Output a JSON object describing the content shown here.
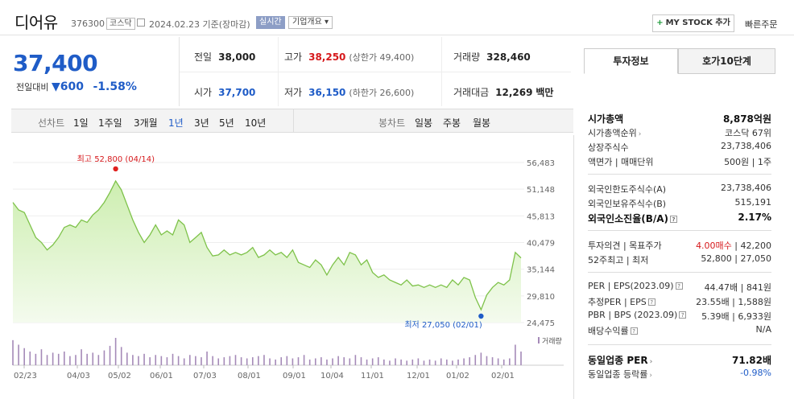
{
  "header": {
    "name": "디어유",
    "code": "376300",
    "market": "코스닥",
    "date": "2024.02.23",
    "basis": "기준(장마감)",
    "live": "실시간",
    "corp_info": "기업개요 ▾",
    "mystock": "MY STOCK 추가",
    "quick_order": "빠른주문"
  },
  "quote": {
    "price": "37,400",
    "change_label": "전일대비",
    "change_arrow": "▼",
    "change_amount": "600",
    "change_pct": "-1.58%"
  },
  "stats": {
    "prev_label": "전일",
    "prev": "38,000",
    "high_label": "고가",
    "high": "38,250",
    "high_limit": "(상한가 49,400)",
    "vol_label": "거래량",
    "vol": "328,460",
    "open_label": "시가",
    "open": "37,700",
    "low_label": "저가",
    "low": "36,150",
    "low_limit": "(하한가 26,600)",
    "amt_label": "거래대금",
    "amt": "12,269",
    "amt_unit": "백만"
  },
  "periods": {
    "line_label": "선차트",
    "items": [
      "1일",
      "1주일",
      "3개월",
      "1년",
      "3년",
      "5년",
      "10년"
    ],
    "active": "1년",
    "candle_label": "봉차트",
    "candles": [
      "일봉",
      "주봉",
      "월봉"
    ]
  },
  "chart_data": {
    "type": "area",
    "y_ticks": [
      "56,483",
      "51,148",
      "45,813",
      "40,479",
      "35,144",
      "29,810",
      "24,475"
    ],
    "ylim": [
      24475,
      56483
    ],
    "x_ticks": [
      "02/23",
      "04/03",
      "05/02",
      "06/01",
      "07/03",
      "08/01",
      "09/01",
      "10/04",
      "11/01",
      "12/01",
      "01/02",
      "02/01"
    ],
    "high_label": "최고 52,800 (04/14)",
    "low_label": "최저 27,050 (02/01)",
    "volume_label": "거래량",
    "series": [
      {
        "values": [
          48500,
          47000,
          46500,
          44000,
          41500,
          40500,
          39000,
          40000,
          41500,
          43500,
          44000,
          43500,
          45000,
          44500,
          46000,
          47000,
          48500,
          50500,
          52800,
          51000,
          48000,
          45000,
          42500,
          40500,
          42000,
          44000,
          42000,
          42800,
          42000,
          45000,
          44000,
          40500,
          41500,
          42500,
          39500,
          37800,
          38000,
          39000,
          38000,
          38500,
          38000,
          38500,
          39500,
          37500,
          38000,
          39000,
          38000,
          38500,
          37500,
          39000,
          36500,
          36000,
          35500,
          37000,
          36000,
          34000,
          36000,
          37500,
          36000,
          38500,
          38000,
          36000,
          37000,
          34500,
          33500,
          34000,
          33000,
          32500,
          32000,
          33000,
          31800,
          32000,
          31500,
          32000,
          31500,
          32000,
          31500,
          33000,
          32000,
          33500,
          33000,
          29500,
          27050,
          30000,
          31500,
          32500,
          32000,
          33000,
          38500,
          37400
        ]
      }
    ],
    "volume": [
      22,
      18,
      15,
      12,
      10,
      14,
      9,
      11,
      10,
      12,
      8,
      9,
      14,
      10,
      11,
      9,
      13,
      17,
      24,
      16,
      11,
      9,
      8,
      10,
      7,
      9,
      8,
      7,
      10,
      8,
      6,
      9,
      8,
      7,
      12,
      8,
      6,
      7,
      8,
      9,
      7,
      6,
      7,
      8,
      9,
      6,
      5,
      7,
      8,
      6,
      7,
      9,
      5,
      6,
      7,
      5,
      6,
      8,
      7,
      6,
      9,
      7,
      5,
      6,
      7,
      5,
      4,
      6,
      5,
      4,
      5,
      6,
      4,
      5,
      4,
      6,
      5,
      4,
      5,
      6,
      7,
      9,
      11,
      8,
      7,
      6,
      5,
      6,
      18,
      12
    ]
  },
  "panel": {
    "tab1": "투자정보",
    "tab2": "호가10단계",
    "rows": [
      {
        "l": "시가총액",
        "r": "8,878억원",
        "bold": true
      },
      {
        "l": "시가총액순위",
        "r": "코스닥 67위",
        "chev": true
      },
      {
        "l": "상장주식수",
        "r": "23,738,406"
      },
      {
        "l": "액면가 | 매매단위",
        "r": "500원 | 1주"
      },
      {
        "l": "외국인한도주식수(A)",
        "r": "23,738,406"
      },
      {
        "l": "외국인보유주식수(B)",
        "r": "515,191"
      },
      {
        "l": "외국인소진율(B/A)",
        "r": "2.17%",
        "bold": true,
        "q": true
      },
      {
        "l": "투자의견 | 목표주가",
        "r_red": "4.00매수",
        "r": " | 42,200"
      },
      {
        "l": "52주최고 | 최저",
        "r": "52,800 | 27,050"
      },
      {
        "l": "PER | EPS(2023.09)",
        "r": "44.47배 | 841원",
        "q": true
      },
      {
        "l": "추정PER | EPS",
        "r": "23.55배 | 1,588원",
        "q": true
      },
      {
        "l": "PBR | BPS (2023.09)",
        "r": "5.39배 | 6,933원",
        "q": true
      },
      {
        "l": "배당수익률",
        "r": "N/A",
        "q": true
      },
      {
        "l": "동일업종 PER",
        "r": "71.82배",
        "bold": true,
        "chev": true
      },
      {
        "l": "동일업종 등락률",
        "r_blue": "-0.98%",
        "chev": true
      }
    ]
  },
  "colors": {
    "accent_blue": "#1f5cc7",
    "up_red": "#d6191c",
    "line_green": "#7ec24a",
    "fill_green": "#d8f0c3"
  }
}
